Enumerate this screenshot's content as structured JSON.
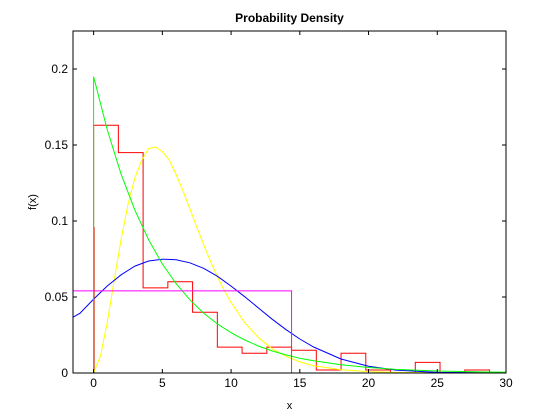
{
  "chart_data": {
    "type": "line",
    "title": "Probability Density",
    "xlabel": "x",
    "ylabel": "f(x)",
    "xlim": [
      -1.5,
      30
    ],
    "ylim": [
      0,
      0.225
    ],
    "x_ticks": [
      0,
      5,
      10,
      15,
      20,
      25,
      30
    ],
    "y_ticks": [
      0,
      0.05,
      0.1,
      0.15,
      0.2
    ],
    "y_tick_labels": [
      "0",
      "0.05",
      "0.1",
      "0.15",
      "0.2"
    ],
    "grid": false,
    "legend": "none",
    "series": [
      {
        "kind": "histogram",
        "color": "#ff0000",
        "edges": [
          0,
          1.8,
          3.6,
          5.4,
          7.2,
          9.0,
          10.8,
          12.6,
          14.4,
          16.2,
          18.0,
          19.8,
          21.6,
          23.4,
          25.2,
          27.0,
          28.8
        ],
        "values": [
          0.163,
          0.145,
          0.056,
          0.06,
          0.04,
          0.017,
          0.013,
          0.017,
          0.015,
          0.002,
          0.013,
          0.002,
          0.0,
          0.007,
          0.0,
          0.002
        ],
        "spike": {
          "x": 0,
          "y": 0.096
        }
      },
      {
        "kind": "curve",
        "color": "#ffff00",
        "x": [
          0,
          0.5,
          1,
          1.5,
          2,
          2.5,
          3,
          3.5,
          4,
          4.5,
          5,
          5.5,
          6,
          6.5,
          7,
          7.5,
          8,
          8.5,
          9,
          9.5,
          10,
          11,
          12,
          13,
          14,
          15,
          16,
          18,
          20,
          22,
          25,
          30
        ],
        "y": [
          0,
          0.0113,
          0.0338,
          0.061,
          0.0879,
          0.1109,
          0.1284,
          0.1399,
          0.1476,
          0.1487,
          0.1457,
          0.1402,
          0.1306,
          0.1199,
          0.1081,
          0.0962,
          0.0845,
          0.0735,
          0.0634,
          0.0544,
          0.0463,
          0.0331,
          0.0232,
          0.0159,
          0.0109,
          0.0073,
          0.0048,
          0.0021,
          0.0009,
          0.0004,
          0.0001,
          0.0
        ]
      },
      {
        "kind": "curve",
        "color": "#0000ff",
        "x": [
          -1.5,
          -1,
          0,
          1,
          2,
          3,
          4,
          5,
          5.2,
          6,
          7,
          8,
          9,
          10,
          11,
          12,
          13,
          14,
          15,
          16,
          18,
          20,
          22,
          25,
          28,
          30
        ],
        "y": [
          0.0367,
          0.0393,
          0.0486,
          0.0573,
          0.0646,
          0.0703,
          0.0737,
          0.0748,
          0.0748,
          0.0745,
          0.0725,
          0.0689,
          0.0637,
          0.0572,
          0.0501,
          0.0427,
          0.0353,
          0.0285,
          0.0224,
          0.0171,
          0.0092,
          0.0045,
          0.0019,
          0.0004,
          0.0001,
          0.0
        ]
      },
      {
        "kind": "curve",
        "color": "#00ff00",
        "x": [
          0,
          1,
          2,
          3,
          4,
          5,
          6,
          7,
          8,
          9,
          10,
          11,
          12,
          13,
          14,
          15,
          16,
          18,
          20,
          22,
          25,
          28,
          30
        ],
        "y": [
          0.195,
          0.1597,
          0.1308,
          0.1071,
          0.0877,
          0.0718,
          0.0588,
          0.0482,
          0.0394,
          0.0323,
          0.0265,
          0.0217,
          0.0177,
          0.0145,
          0.0119,
          0.0097,
          0.008,
          0.0054,
          0.0036,
          0.0024,
          0.0013,
          0.0007,
          0.0005
        ],
        "drop": {
          "x": 0
        }
      },
      {
        "kind": "uniform",
        "color": "#ff00ff",
        "x_range": [
          -1.5,
          14.4
        ],
        "y": 0.054
      }
    ]
  }
}
